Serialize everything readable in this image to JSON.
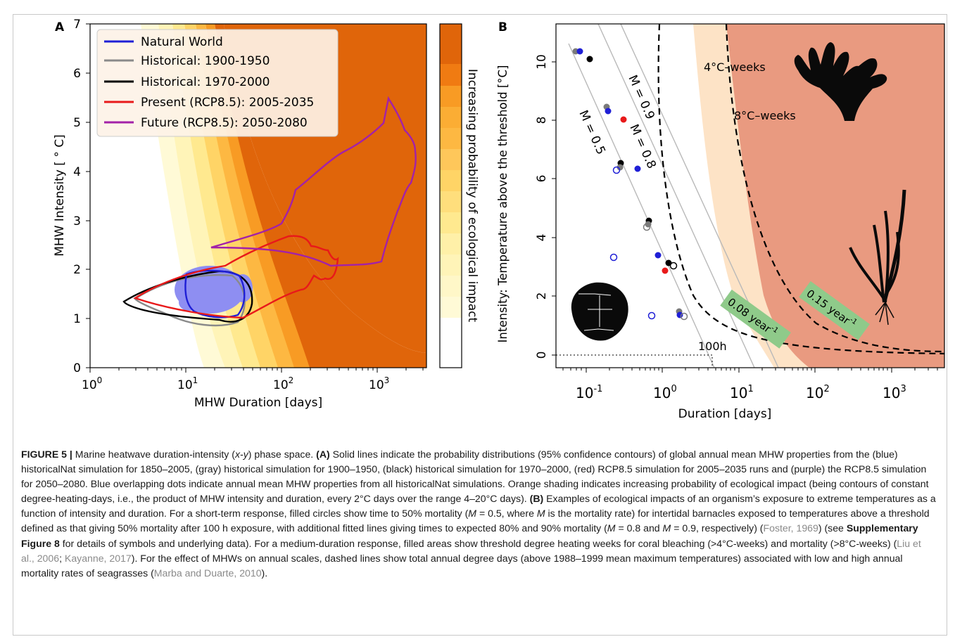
{
  "panelA": {
    "label": "A",
    "xlabel": "MHW Duration [days]",
    "ylabel": "MHW Intensity [$^\\circ$C]",
    "ylabel_display": "MHW Intensity [ ° C]",
    "colorbar_label": "Increasing probability of ecological impact",
    "legend": [
      {
        "name": "Natural World",
        "color": "#1f1fd6"
      },
      {
        "name": "Historical: 1900-1950",
        "color": "#8a8a8a"
      },
      {
        "name": "Historical: 1970-2000",
        "color": "#000000"
      },
      {
        "name": "Present (RCP8.5): 2005-2035",
        "color": "#e8191a"
      },
      {
        "name": "Future (RCP8.5): 2050-2080",
        "color": "#a321a8"
      }
    ],
    "xticks": [
      "10",
      "10",
      "10",
      "10"
    ],
    "xtick_exps": [
      "0",
      "1",
      "2",
      "3"
    ],
    "yticks": [
      "0",
      "1",
      "2",
      "3",
      "4",
      "5",
      "6",
      "7"
    ]
  },
  "panelB": {
    "label": "B",
    "xlabel": "Duration [days]",
    "ylabel": "Intensity: Temperature above the threshold [°C]",
    "xticks": [
      "10",
      "10",
      "10",
      "10",
      "10"
    ],
    "xtick_exps": [
      "-1",
      "0",
      "1",
      "2",
      "3"
    ],
    "yticks": [
      "0",
      "2",
      "4",
      "6",
      "8",
      "10"
    ],
    "line_labels": [
      "M = 0.5",
      "M = 0.8",
      "M = 0.9"
    ],
    "annotation_100h": "100h",
    "coral_labels": [
      "4°C–weeks",
      "8°C–weeks"
    ],
    "seagrass_labels": [
      {
        "text": "0.08 year",
        "sup": "-1"
      },
      {
        "text": "0.15 year",
        "sup": "-1"
      }
    ]
  },
  "colors": {
    "impact_dark": "#e0650a",
    "coral_light": "#fde3c6",
    "coral_dark": "#e99a80",
    "seagrass_box": "#8fca8a"
  },
  "chart_data": [
    {
      "type": "line",
      "panel": "A",
      "x_scale": "log",
      "xlim": [
        1,
        3500
      ],
      "ylim": [
        0,
        7
      ],
      "xlabel": "MHW Duration [days]",
      "ylabel": "MHW Intensity [ ° C]",
      "series": [
        {
          "name": "Natural World",
          "values": []
        },
        {
          "name": "Historical: 1900-1950",
          "values": []
        },
        {
          "name": "Historical: 1970-2000",
          "values": []
        },
        {
          "name": "Present (RCP8.5): 2005-2035",
          "values": []
        },
        {
          "name": "Future (RCP8.5): 2050-2080",
          "values": []
        }
      ]
    },
    {
      "type": "scatter",
      "panel": "B",
      "x_scale": "log",
      "xlim": [
        0.04,
        1500
      ],
      "ylim": [
        -0.6,
        11.5
      ],
      "xlabel": "Duration [days]",
      "ylabel": "Intensity: Temperature above the threshold [°C]"
    }
  ],
  "caption": {
    "figure_label": "FIGURE 5 |",
    "title": "Marine heatwave duration-intensity (",
    "xy": "x-y",
    "title_end": ") phase space.",
    "partA_label": "(A)",
    "partA_text": "Solid lines indicate the probability distributions (95% confidence contours) of global annual mean MHW properties from the (blue) historicalNat simulation for 1850–2005, (gray) historical simulation for 1900–1950, (black) historical simulation for 1970–2000, (red) RCP8.5 simulation for 2005–2035 runs and (purple) the RCP8.5 simulation for 2050–2080. Blue overlapping dots indicate annual mean MHW properties from all historicalNat simulations. Orange shading indicates increasing probability of ecological impact (being contours of constant degree-heating-days, i.e., the product of MHW intensity and duration, every 2°C days over the range 4–20°C days).",
    "partB_label": "(B)",
    "partB_text1": "Examples of ecological impacts of an organism’s exposure to extreme temperatures as a function of intensity and duration. For a short-term response, filled circles show time to 50% mortality (",
    "m1": "M",
    "partB_text2": " = 0.5, where ",
    "m2": "M",
    "partB_text3": " is the mortality rate) for intertidal barnacles exposed to temperatures above a threshold defined as that giving 50% mortality after 100 h exposure, with additional fitted lines giving times to expected 80% and 90% mortality (",
    "m3": "M",
    "partB_text4": " = 0.8 and ",
    "m4": "M",
    "partB_text5": " = 0.9, respectively) (",
    "cite1": "Foster, 1969",
    "partB_text6": ") (see ",
    "supp": "Supplementary Figure 8",
    "partB_text7": " for details of symbols and underlying data). For a medium-duration response, filled areas show threshold degree heating weeks for coral bleaching (>4°C-weeks) and mortality (>8°C-weeks) (",
    "cite2": "Liu et al., 2006",
    "partB_text8": "; ",
    "cite3": "Kayanne, 2017",
    "partB_text9": "). For the effect of MHWs on annual scales, dashed lines show total annual degree days (above 1988–1999 mean maximum temperatures) associated with low and high annual mortality rates of seagrasses (",
    "cite4": "Marba and Duarte, 2010",
    "partB_text10": ")."
  }
}
